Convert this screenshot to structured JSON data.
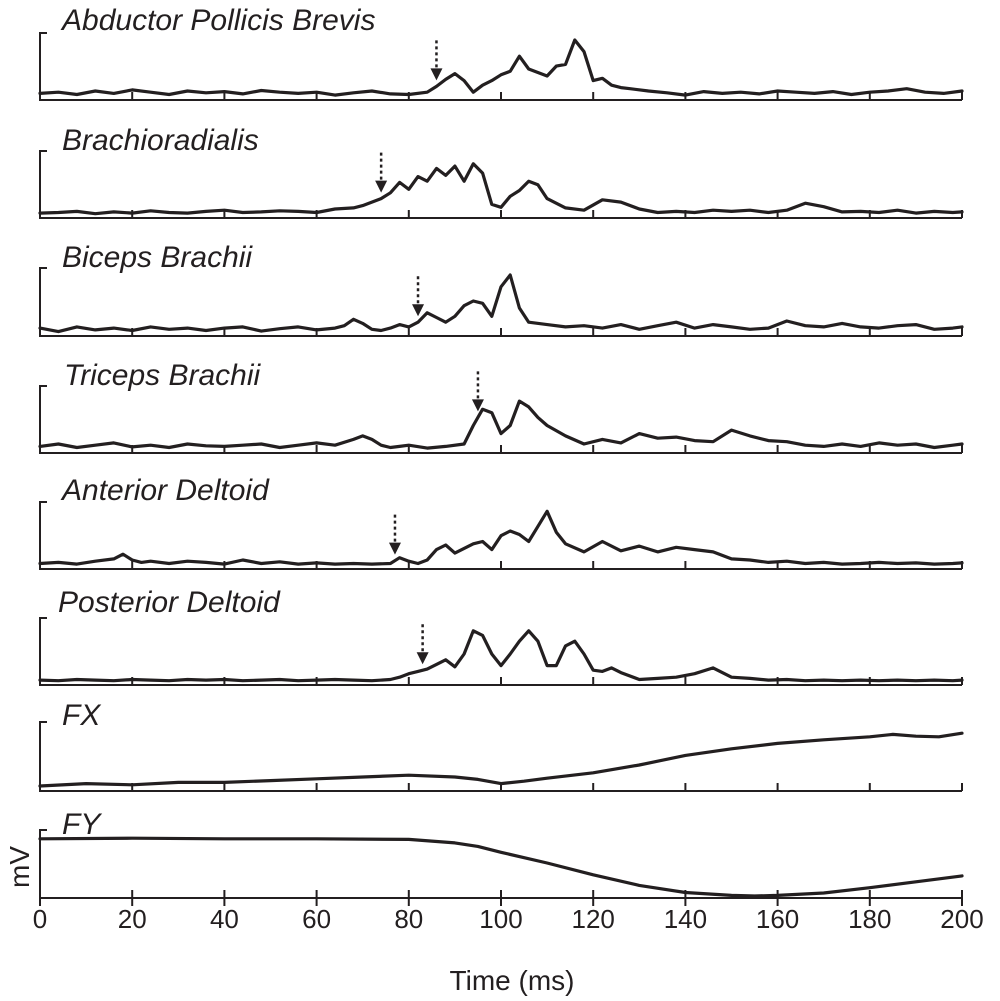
{
  "chart_data": {
    "type": "line",
    "xlabel": "Time (ms)",
    "ylabel": "mV",
    "xlim": [
      0,
      200
    ],
    "xticks": [
      "0",
      "20",
      "40",
      "60",
      "80",
      "100",
      "120",
      "140",
      "160",
      "180",
      "200"
    ],
    "grid": false,
    "legend": "none",
    "line_color": "#231f20",
    "onset_marker": "dashed-down-arrow",
    "panels": [
      {
        "title": "Abductor Pollicis Brevis",
        "onset_ms": 86,
        "x": [
          0,
          4,
          8,
          12,
          16,
          20,
          24,
          28,
          32,
          36,
          40,
          44,
          48,
          52,
          56,
          60,
          64,
          68,
          72,
          76,
          80,
          84,
          86,
          88,
          90,
          92,
          94,
          96,
          98,
          100,
          102,
          104,
          106,
          108,
          110,
          112,
          114,
          116,
          118,
          120,
          122,
          124,
          126,
          128,
          132,
          136,
          140,
          144,
          148,
          152,
          156,
          160,
          164,
          168,
          172,
          176,
          180,
          184,
          188,
          192,
          196,
          200
        ],
        "y": [
          0.08,
          0.1,
          0.06,
          0.12,
          0.08,
          0.14,
          0.1,
          0.06,
          0.12,
          0.09,
          0.11,
          0.07,
          0.13,
          0.1,
          0.08,
          0.1,
          0.05,
          0.09,
          0.12,
          0.07,
          0.06,
          0.1,
          0.2,
          0.32,
          0.42,
          0.3,
          0.1,
          0.22,
          0.3,
          0.4,
          0.46,
          0.72,
          0.5,
          0.44,
          0.38,
          0.55,
          0.58,
          1.0,
          0.8,
          0.3,
          0.34,
          0.22,
          0.18,
          0.16,
          0.12,
          0.09,
          0.05,
          0.11,
          0.08,
          0.1,
          0.07,
          0.12,
          0.1,
          0.08,
          0.11,
          0.06,
          0.1,
          0.12,
          0.16,
          0.1,
          0.08,
          0.12
        ]
      },
      {
        "title": "Brachioradialis",
        "onset_ms": 74,
        "x": [
          0,
          4,
          8,
          12,
          16,
          20,
          24,
          28,
          32,
          36,
          40,
          44,
          48,
          52,
          56,
          60,
          64,
          68,
          70,
          72,
          74,
          76,
          78,
          80,
          82,
          84,
          86,
          88,
          90,
          92,
          94,
          96,
          98,
          100,
          102,
          104,
          106,
          108,
          110,
          114,
          118,
          122,
          126,
          130,
          134,
          138,
          142,
          146,
          150,
          154,
          158,
          162,
          166,
          170,
          174,
          178,
          182,
          186,
          190,
          194,
          198,
          200
        ],
        "y": [
          0.05,
          0.06,
          0.08,
          0.04,
          0.07,
          0.05,
          0.09,
          0.06,
          0.05,
          0.08,
          0.1,
          0.06,
          0.07,
          0.09,
          0.08,
          0.06,
          0.12,
          0.14,
          0.18,
          0.24,
          0.3,
          0.4,
          0.58,
          0.46,
          0.68,
          0.6,
          0.82,
          0.7,
          0.86,
          0.6,
          0.9,
          0.74,
          0.2,
          0.15,
          0.34,
          0.44,
          0.6,
          0.54,
          0.3,
          0.14,
          0.1,
          0.28,
          0.24,
          0.12,
          0.06,
          0.08,
          0.06,
          0.1,
          0.08,
          0.1,
          0.06,
          0.1,
          0.22,
          0.16,
          0.07,
          0.08,
          0.06,
          0.1,
          0.05,
          0.08,
          0.06,
          0.07
        ]
      },
      {
        "title": "Biceps Brachii",
        "onset_ms": 82,
        "x": [
          0,
          4,
          8,
          12,
          16,
          20,
          24,
          28,
          32,
          36,
          40,
          44,
          48,
          52,
          56,
          60,
          64,
          66,
          68,
          70,
          72,
          74,
          76,
          78,
          80,
          82,
          84,
          86,
          88,
          90,
          92,
          94,
          96,
          98,
          100,
          102,
          104,
          106,
          110,
          114,
          118,
          122,
          126,
          130,
          134,
          138,
          142,
          146,
          150,
          154,
          158,
          162,
          166,
          170,
          174,
          178,
          182,
          186,
          190,
          194,
          198,
          200
        ],
        "y": [
          0.1,
          0.04,
          0.12,
          0.07,
          0.1,
          0.06,
          0.12,
          0.08,
          0.1,
          0.06,
          0.1,
          0.12,
          0.05,
          0.09,
          0.12,
          0.07,
          0.1,
          0.14,
          0.25,
          0.18,
          0.08,
          0.06,
          0.1,
          0.16,
          0.12,
          0.2,
          0.36,
          0.28,
          0.2,
          0.3,
          0.48,
          0.56,
          0.52,
          0.3,
          0.8,
          1.0,
          0.44,
          0.2,
          0.16,
          0.12,
          0.14,
          0.1,
          0.16,
          0.08,
          0.14,
          0.2,
          0.1,
          0.16,
          0.12,
          0.08,
          0.1,
          0.22,
          0.14,
          0.12,
          0.18,
          0.12,
          0.1,
          0.14,
          0.16,
          0.08,
          0.1,
          0.12
        ]
      },
      {
        "title": "Triceps Brachii",
        "onset_ms": 95,
        "x": [
          0,
          4,
          8,
          12,
          16,
          20,
          24,
          28,
          32,
          36,
          40,
          44,
          48,
          52,
          56,
          60,
          64,
          68,
          70,
          72,
          74,
          76,
          78,
          80,
          84,
          88,
          92,
          94,
          96,
          98,
          100,
          102,
          104,
          106,
          108,
          110,
          114,
          118,
          122,
          126,
          130,
          134,
          138,
          142,
          146,
          150,
          154,
          158,
          162,
          166,
          170,
          174,
          178,
          182,
          186,
          190,
          194,
          198,
          200
        ],
        "y": [
          0.08,
          0.12,
          0.06,
          0.1,
          0.14,
          0.07,
          0.1,
          0.06,
          0.12,
          0.09,
          0.08,
          0.1,
          0.12,
          0.06,
          0.1,
          0.14,
          0.1,
          0.2,
          0.26,
          0.2,
          0.1,
          0.06,
          0.08,
          0.1,
          0.05,
          0.08,
          0.12,
          0.44,
          0.72,
          0.66,
          0.3,
          0.44,
          0.86,
          0.76,
          0.58,
          0.44,
          0.26,
          0.12,
          0.2,
          0.14,
          0.3,
          0.22,
          0.24,
          0.18,
          0.16,
          0.36,
          0.26,
          0.18,
          0.16,
          0.1,
          0.08,
          0.12,
          0.08,
          0.14,
          0.1,
          0.12,
          0.06,
          0.1,
          0.12
        ]
      },
      {
        "title": "Anterior Deltoid",
        "onset_ms": 77,
        "x": [
          0,
          4,
          8,
          12,
          16,
          18,
          20,
          22,
          24,
          28,
          32,
          36,
          40,
          44,
          48,
          52,
          56,
          60,
          64,
          68,
          72,
          76,
          78,
          80,
          82,
          84,
          86,
          88,
          90,
          92,
          94,
          96,
          98,
          100,
          102,
          104,
          106,
          108,
          110,
          112,
          114,
          118,
          122,
          126,
          130,
          134,
          138,
          142,
          146,
          150,
          154,
          158,
          162,
          166,
          170,
          174,
          178,
          182,
          186,
          190,
          194,
          198,
          200
        ],
        "y": [
          0.06,
          0.08,
          0.05,
          0.1,
          0.14,
          0.22,
          0.12,
          0.08,
          0.1,
          0.06,
          0.1,
          0.08,
          0.05,
          0.12,
          0.06,
          0.09,
          0.05,
          0.07,
          0.05,
          0.06,
          0.05,
          0.06,
          0.16,
          0.1,
          0.06,
          0.12,
          0.3,
          0.38,
          0.24,
          0.32,
          0.4,
          0.44,
          0.3,
          0.54,
          0.62,
          0.56,
          0.44,
          0.7,
          0.96,
          0.6,
          0.4,
          0.26,
          0.44,
          0.28,
          0.36,
          0.26,
          0.34,
          0.3,
          0.26,
          0.14,
          0.12,
          0.08,
          0.1,
          0.06,
          0.08,
          0.05,
          0.06,
          0.08,
          0.06,
          0.07,
          0.05,
          0.06,
          0.07
        ]
      },
      {
        "title": "Posterior Deltoid",
        "onset_ms": 83,
        "x": [
          0,
          4,
          8,
          12,
          16,
          20,
          24,
          28,
          32,
          36,
          40,
          44,
          48,
          52,
          56,
          60,
          64,
          68,
          72,
          76,
          78,
          80,
          82,
          84,
          86,
          88,
          90,
          92,
          94,
          96,
          98,
          100,
          102,
          104,
          106,
          108,
          110,
          112,
          114,
          116,
          118,
          120,
          122,
          124,
          126,
          130,
          134,
          138,
          142,
          146,
          150,
          154,
          158,
          162,
          166,
          170,
          174,
          178,
          182,
          186,
          190,
          194,
          198,
          200
        ],
        "y": [
          0.05,
          0.04,
          0.06,
          0.05,
          0.04,
          0.06,
          0.05,
          0.04,
          0.06,
          0.05,
          0.06,
          0.04,
          0.05,
          0.06,
          0.04,
          0.05,
          0.06,
          0.05,
          0.04,
          0.06,
          0.1,
          0.16,
          0.2,
          0.24,
          0.32,
          0.4,
          0.28,
          0.5,
          0.9,
          0.82,
          0.5,
          0.3,
          0.5,
          0.72,
          0.9,
          0.72,
          0.3,
          0.3,
          0.64,
          0.72,
          0.5,
          0.22,
          0.2,
          0.26,
          0.18,
          0.06,
          0.08,
          0.1,
          0.16,
          0.26,
          0.1,
          0.08,
          0.05,
          0.06,
          0.04,
          0.05,
          0.04,
          0.05,
          0.04,
          0.05,
          0.04,
          0.05,
          0.04,
          0.05
        ]
      },
      {
        "title": "FX",
        "x": [
          0,
          10,
          20,
          30,
          40,
          50,
          60,
          70,
          80,
          90,
          95,
          100,
          105,
          110,
          120,
          130,
          140,
          150,
          160,
          170,
          180,
          185,
          190,
          195,
          200
        ],
        "y": [
          0.05,
          0.09,
          0.07,
          0.11,
          0.11,
          0.14,
          0.17,
          0.2,
          0.23,
          0.2,
          0.16,
          0.09,
          0.13,
          0.18,
          0.27,
          0.4,
          0.56,
          0.67,
          0.76,
          0.82,
          0.87,
          0.91,
          0.88,
          0.87,
          0.93
        ]
      },
      {
        "title": "FY",
        "x": [
          0,
          20,
          40,
          60,
          80,
          90,
          95,
          100,
          110,
          120,
          130,
          140,
          150,
          155,
          160,
          170,
          180,
          190,
          200
        ],
        "y": [
          0.97,
          0.98,
          0.97,
          0.97,
          0.96,
          0.9,
          0.84,
          0.74,
          0.56,
          0.36,
          0.18,
          0.06,
          0.01,
          0.0,
          0.01,
          0.05,
          0.14,
          0.24,
          0.34
        ]
      }
    ]
  }
}
